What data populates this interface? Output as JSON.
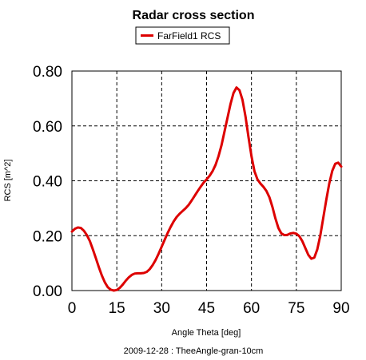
{
  "chart_data": {
    "type": "line",
    "title": "Radar cross section",
    "xlabel": "Angle Theta [deg]",
    "ylabel": "RCS [m^2]",
    "footer": "2009-12-28 : TheeAngle-gran-10cm",
    "xlim": [
      0,
      90
    ],
    "ylim": [
      0,
      0.8
    ],
    "x_ticks": [
      "0",
      "15",
      "30",
      "45",
      "60",
      "75",
      "90"
    ],
    "y_ticks": [
      "0.00",
      "0.20",
      "0.40",
      "0.60",
      "0.80"
    ],
    "grid": true,
    "legend_position": "top-center",
    "series": [
      {
        "name": "FarField1 RCS",
        "color": "#dd0000",
        "x": [
          0,
          1,
          2,
          3,
          4,
          5,
          6,
          7,
          8,
          9,
          10,
          11,
          12,
          13,
          14,
          15,
          16,
          17,
          18,
          19,
          20,
          21,
          22,
          23,
          24,
          25,
          26,
          27,
          28,
          29,
          30,
          31,
          32,
          33,
          34,
          35,
          36,
          37,
          38,
          39,
          40,
          41,
          42,
          43,
          44,
          45,
          46,
          47,
          48,
          49,
          50,
          51,
          52,
          53,
          54,
          55,
          56,
          57,
          58,
          59,
          60,
          61,
          62,
          63,
          64,
          65,
          66,
          67,
          68,
          69,
          70,
          71,
          72,
          73,
          74,
          75,
          76,
          77,
          78,
          79,
          80,
          81,
          82,
          83,
          84,
          85,
          86,
          87,
          88,
          89,
          90
        ],
        "y": [
          0.215,
          0.225,
          0.23,
          0.228,
          0.218,
          0.202,
          0.18,
          0.15,
          0.118,
          0.085,
          0.055,
          0.03,
          0.012,
          0.003,
          0.0,
          0.002,
          0.01,
          0.022,
          0.036,
          0.048,
          0.057,
          0.062,
          0.063,
          0.063,
          0.064,
          0.068,
          0.078,
          0.093,
          0.112,
          0.135,
          0.16,
          0.185,
          0.21,
          0.232,
          0.252,
          0.268,
          0.28,
          0.29,
          0.3,
          0.312,
          0.328,
          0.345,
          0.362,
          0.378,
          0.393,
          0.405,
          0.418,
          0.435,
          0.458,
          0.49,
          0.53,
          0.58,
          0.63,
          0.68,
          0.72,
          0.74,
          0.73,
          0.695,
          0.635,
          0.56,
          0.49,
          0.435,
          0.405,
          0.39,
          0.378,
          0.363,
          0.34,
          0.305,
          0.263,
          0.228,
          0.208,
          0.202,
          0.203,
          0.208,
          0.21,
          0.207,
          0.198,
          0.18,
          0.155,
          0.13,
          0.116,
          0.12,
          0.15,
          0.2,
          0.265,
          0.33,
          0.39,
          0.436,
          0.462,
          0.466,
          0.452
        ]
      }
    ]
  }
}
